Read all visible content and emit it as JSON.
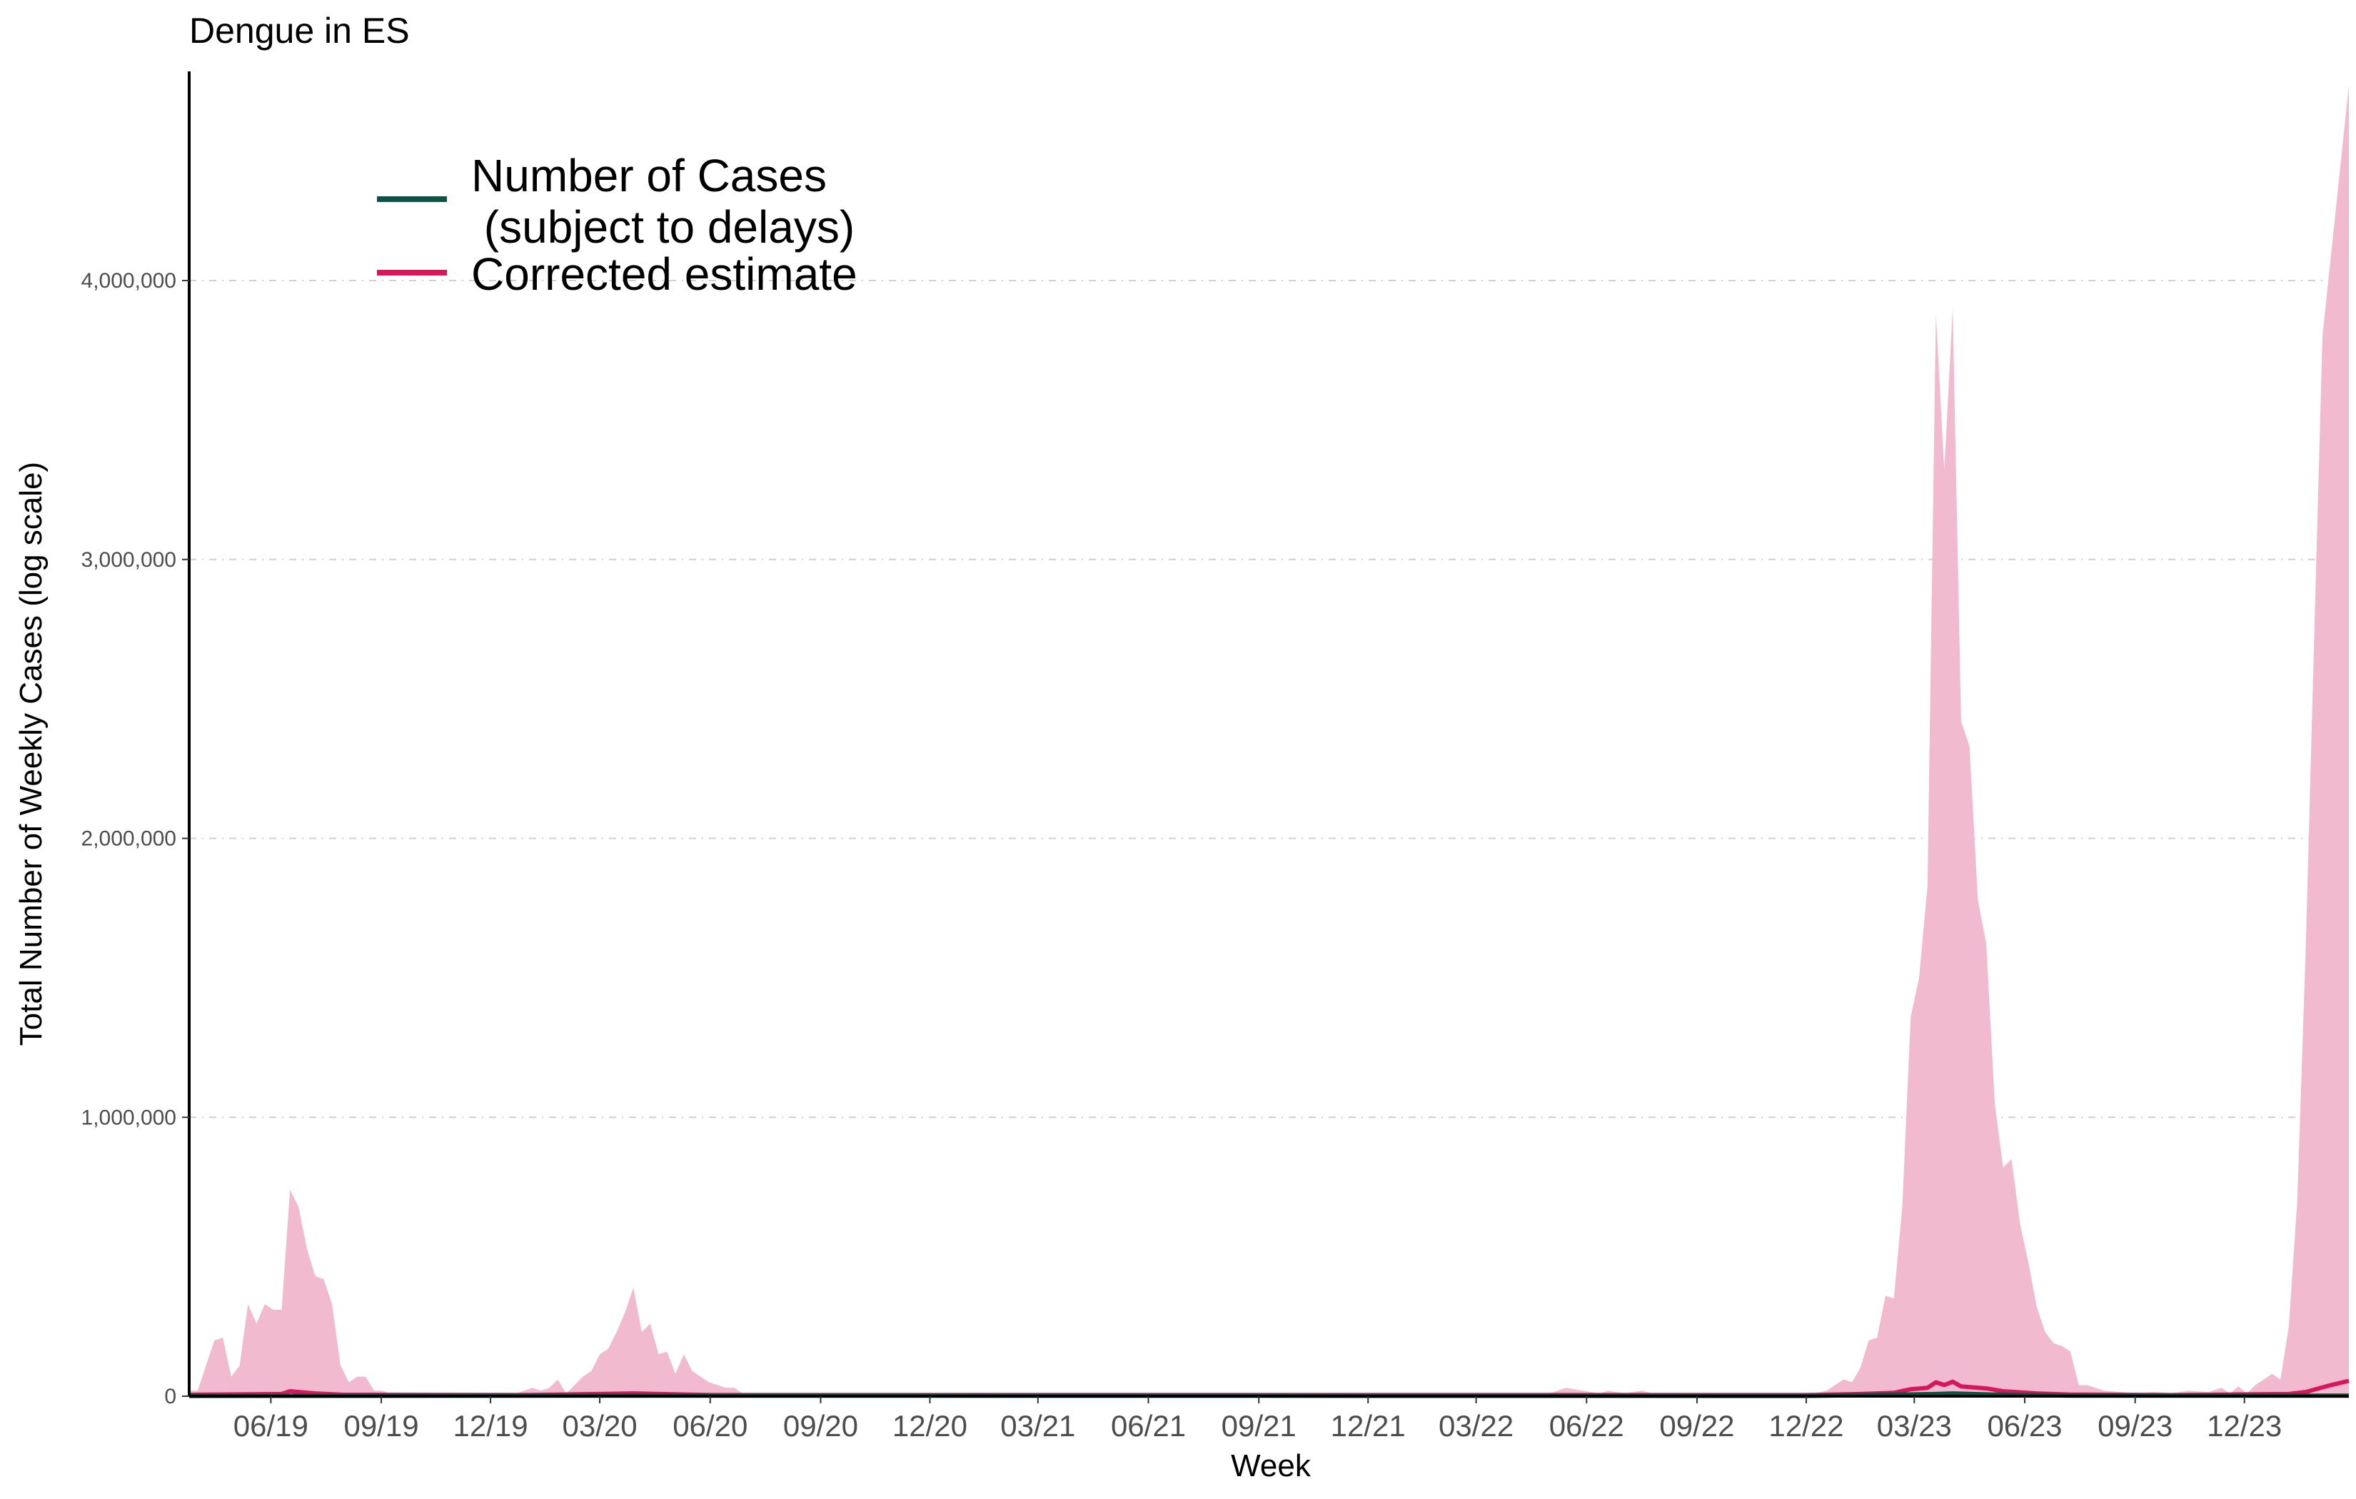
{
  "chart_data": {
    "type": "area",
    "title": "Dengue in ES",
    "xlabel": "Week",
    "ylabel": "Total Number of Weekly Cases (log scale)",
    "x_range": [
      "2019-03-25",
      "2024-02-26"
    ],
    "ylim": [
      0,
      4750000
    ],
    "grid": {
      "horizontal": true,
      "vertical": false
    },
    "y_ticks": [
      {
        "value": 0,
        "label": "0"
      },
      {
        "value": 1000000,
        "label": "1,000,000"
      },
      {
        "value": 2000000,
        "label": "2,000,000"
      },
      {
        "value": 3000000,
        "label": "3,000,000"
      },
      {
        "value": 4000000,
        "label": "4,000,000"
      }
    ],
    "x_ticks": [
      {
        "date": "2019-06-01",
        "label": "06/19"
      },
      {
        "date": "2019-09-01",
        "label": "09/19"
      },
      {
        "date": "2019-12-01",
        "label": "12/19"
      },
      {
        "date": "2020-03-01",
        "label": "03/20"
      },
      {
        "date": "2020-06-01",
        "label": "06/20"
      },
      {
        "date": "2020-09-01",
        "label": "09/20"
      },
      {
        "date": "2020-12-01",
        "label": "12/20"
      },
      {
        "date": "2021-03-01",
        "label": "03/21"
      },
      {
        "date": "2021-06-01",
        "label": "06/21"
      },
      {
        "date": "2021-09-01",
        "label": "09/21"
      },
      {
        "date": "2021-12-01",
        "label": "12/21"
      },
      {
        "date": "2022-03-01",
        "label": "03/22"
      },
      {
        "date": "2022-06-01",
        "label": "06/22"
      },
      {
        "date": "2022-09-01",
        "label": "09/22"
      },
      {
        "date": "2022-12-01",
        "label": "12/22"
      },
      {
        "date": "2023-03-01",
        "label": "03/23"
      },
      {
        "date": "2023-06-01",
        "label": "06/23"
      },
      {
        "date": "2023-09-01",
        "label": "09/23"
      },
      {
        "date": "2023-12-01",
        "label": "12/23"
      }
    ],
    "legend": {
      "position": "top-left",
      "entries": [
        {
          "label": "Number of Cases",
          "label2": " (subject to delays)",
          "color": "#0b5345"
        },
        {
          "label": "Corrected estimate",
          "color": "#d6175e"
        }
      ]
    },
    "colors": {
      "cases_line": "#0b5345",
      "estimate_line": "#d6175e",
      "interval_fill": "#f2bacf"
    },
    "series": [
      {
        "name": "upper interval",
        "role": "interval_upper",
        "points": [
          [
            "2019-03-25",
            20000
          ],
          [
            "2019-04-01",
            20000
          ],
          [
            "2019-04-15",
            200000
          ],
          [
            "2019-04-22",
            210000
          ],
          [
            "2019-04-29",
            70000
          ],
          [
            "2019-05-06",
            110000
          ],
          [
            "2019-05-13",
            330000
          ],
          [
            "2019-05-20",
            260000
          ],
          [
            "2019-05-27",
            330000
          ],
          [
            "2019-06-03",
            310000
          ],
          [
            "2019-06-10",
            310000
          ],
          [
            "2019-06-17",
            740000
          ],
          [
            "2019-06-24",
            680000
          ],
          [
            "2019-07-01",
            530000
          ],
          [
            "2019-07-08",
            430000
          ],
          [
            "2019-07-15",
            420000
          ],
          [
            "2019-07-22",
            330000
          ],
          [
            "2019-07-29",
            110000
          ],
          [
            "2019-08-05",
            50000
          ],
          [
            "2019-08-12",
            70000
          ],
          [
            "2019-08-19",
            70000
          ],
          [
            "2019-08-26",
            20000
          ],
          [
            "2019-09-02",
            20000
          ],
          [
            "2019-09-09",
            8000
          ],
          [
            "2019-10-01",
            5000
          ],
          [
            "2019-11-01",
            5000
          ],
          [
            "2019-12-01",
            8000
          ],
          [
            "2019-12-22",
            10000
          ],
          [
            "2020-01-05",
            30000
          ],
          [
            "2020-01-12",
            20000
          ],
          [
            "2020-01-19",
            30000
          ],
          [
            "2020-01-26",
            60000
          ],
          [
            "2020-02-02",
            10000
          ],
          [
            "2020-02-09",
            40000
          ],
          [
            "2020-02-16",
            70000
          ],
          [
            "2020-02-23",
            90000
          ],
          [
            "2020-03-01",
            150000
          ],
          [
            "2020-03-08",
            170000
          ],
          [
            "2020-03-15",
            230000
          ],
          [
            "2020-03-22",
            300000
          ],
          [
            "2020-03-29",
            390000
          ],
          [
            "2020-04-05",
            230000
          ],
          [
            "2020-04-12",
            260000
          ],
          [
            "2020-04-19",
            150000
          ],
          [
            "2020-04-26",
            160000
          ],
          [
            "2020-05-03",
            80000
          ],
          [
            "2020-05-10",
            150000
          ],
          [
            "2020-05-17",
            90000
          ],
          [
            "2020-05-24",
            70000
          ],
          [
            "2020-05-31",
            50000
          ],
          [
            "2020-06-07",
            40000
          ],
          [
            "2020-06-14",
            30000
          ],
          [
            "2020-06-21",
            30000
          ],
          [
            "2020-06-28",
            10000
          ],
          [
            "2020-07-15",
            5000
          ],
          [
            "2020-09-01",
            3000
          ],
          [
            "2021-01-01",
            3000
          ],
          [
            "2021-03-01",
            5000
          ],
          [
            "2021-06-01",
            3000
          ],
          [
            "2021-09-01",
            3000
          ],
          [
            "2022-01-01",
            3000
          ],
          [
            "2022-04-01",
            5000
          ],
          [
            "2022-05-01",
            10000
          ],
          [
            "2022-05-15",
            30000
          ],
          [
            "2022-05-29",
            20000
          ],
          [
            "2022-06-12",
            10000
          ],
          [
            "2022-06-19",
            20000
          ],
          [
            "2022-07-03",
            10000
          ],
          [
            "2022-07-17",
            20000
          ],
          [
            "2022-07-31",
            5000
          ],
          [
            "2022-09-01",
            3000
          ],
          [
            "2022-12-01",
            5000
          ],
          [
            "2022-12-18",
            20000
          ],
          [
            "2023-01-01",
            60000
          ],
          [
            "2023-01-08",
            50000
          ],
          [
            "2023-01-15",
            100000
          ],
          [
            "2023-01-22",
            200000
          ],
          [
            "2023-01-29",
            210000
          ],
          [
            "2023-02-05",
            360000
          ],
          [
            "2023-02-12",
            350000
          ],
          [
            "2023-02-19",
            680000
          ],
          [
            "2023-02-26",
            1360000
          ],
          [
            "2023-03-05",
            1500000
          ],
          [
            "2023-03-12",
            1830000
          ],
          [
            "2023-03-19",
            3880000
          ],
          [
            "2023-03-26",
            3320000
          ],
          [
            "2023-04-02",
            3900000
          ],
          [
            "2023-04-09",
            2420000
          ],
          [
            "2023-04-16",
            2330000
          ],
          [
            "2023-04-23",
            1780000
          ],
          [
            "2023-04-30",
            1620000
          ],
          [
            "2023-05-07",
            1050000
          ],
          [
            "2023-05-14",
            820000
          ],
          [
            "2023-05-21",
            850000
          ],
          [
            "2023-05-28",
            620000
          ],
          [
            "2023-06-04",
            480000
          ],
          [
            "2023-06-11",
            320000
          ],
          [
            "2023-06-18",
            230000
          ],
          [
            "2023-06-25",
            190000
          ],
          [
            "2023-07-02",
            180000
          ],
          [
            "2023-07-09",
            160000
          ],
          [
            "2023-07-16",
            40000
          ],
          [
            "2023-07-23",
            40000
          ],
          [
            "2023-07-30",
            30000
          ],
          [
            "2023-08-06",
            20000
          ],
          [
            "2023-08-20",
            15000
          ],
          [
            "2023-09-03",
            10000
          ],
          [
            "2023-09-17",
            15000
          ],
          [
            "2023-10-01",
            10000
          ],
          [
            "2023-10-15",
            20000
          ],
          [
            "2023-11-01",
            15000
          ],
          [
            "2023-11-12",
            30000
          ],
          [
            "2023-11-19",
            10000
          ],
          [
            "2023-11-26",
            35000
          ],
          [
            "2023-12-03",
            10000
          ],
          [
            "2023-12-10",
            40000
          ],
          [
            "2023-12-24",
            80000
          ],
          [
            "2023-12-31",
            60000
          ],
          [
            "2024-01-07",
            250000
          ],
          [
            "2024-01-14",
            700000
          ],
          [
            "2024-01-21",
            1600000
          ],
          [
            "2024-01-28",
            2700000
          ],
          [
            "2024-02-04",
            3800000
          ],
          [
            "2024-02-26",
            4700000
          ]
        ]
      },
      {
        "name": "Corrected estimate",
        "role": "estimate",
        "points": [
          [
            "2019-03-25",
            5000
          ],
          [
            "2019-06-10",
            8000
          ],
          [
            "2019-06-17",
            18000
          ],
          [
            "2019-07-08",
            10000
          ],
          [
            "2019-08-01",
            5000
          ],
          [
            "2020-01-01",
            4000
          ],
          [
            "2020-03-29",
            10000
          ],
          [
            "2020-06-01",
            4000
          ],
          [
            "2022-12-01",
            4000
          ],
          [
            "2023-01-15",
            8000
          ],
          [
            "2023-02-12",
            12000
          ],
          [
            "2023-02-26",
            25000
          ],
          [
            "2023-03-12",
            30000
          ],
          [
            "2023-03-19",
            50000
          ],
          [
            "2023-03-26",
            40000
          ],
          [
            "2023-04-02",
            52000
          ],
          [
            "2023-04-09",
            35000
          ],
          [
            "2023-04-30",
            28000
          ],
          [
            "2023-05-14",
            18000
          ],
          [
            "2023-06-11",
            10000
          ],
          [
            "2023-07-09",
            6000
          ],
          [
            "2023-10-01",
            4000
          ],
          [
            "2024-01-07",
            8000
          ],
          [
            "2024-01-21",
            15000
          ],
          [
            "2024-02-11",
            40000
          ],
          [
            "2024-02-26",
            55000
          ]
        ]
      },
      {
        "name": "Number of Cases",
        "role": "cases",
        "points": [
          [
            "2019-03-25",
            1000
          ],
          [
            "2020-03-29",
            2000
          ],
          [
            "2022-12-01",
            1000
          ],
          [
            "2023-03-19",
            8000
          ],
          [
            "2023-04-02",
            10000
          ],
          [
            "2023-05-14",
            5000
          ],
          [
            "2023-07-09",
            2000
          ],
          [
            "2024-02-26",
            2000
          ]
        ]
      }
    ]
  }
}
